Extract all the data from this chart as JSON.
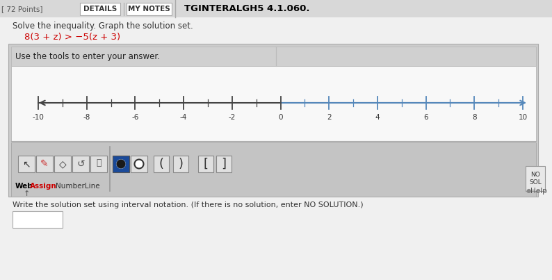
{
  "page_bg": "#e8e8e8",
  "title_text": "TGINTERALGH5 4.1.060.",
  "details_btn": "DETAILS",
  "mynotes_btn": "MY NOTES",
  "solve_text": "Solve the inequality. Graph the solution set.",
  "inequality": "8(3 + z) > −5(z + 3)",
  "inequality_color": "#cc0000",
  "tools_text": "Use the tools to enter your answer.",
  "numberline_min": -10,
  "numberline_max": 10,
  "numberline_ticks": [
    -10,
    -8,
    -6,
    -4,
    -2,
    0,
    2,
    4,
    6,
    8,
    10
  ],
  "nl_color_left": "#444444",
  "nl_color_right": "#5588bb",
  "toolbar_bg": "#c0c0c0",
  "outer_box_bg": "#c8c8c8",
  "header_bg": "#d8d8d8",
  "nl_area_bg": "#f0f0f0",
  "dot_filled_color": "#1a4a9a",
  "webassign_web": "Web",
  "webassign_assign": "Assign",
  "webassign_color": "#cc0000",
  "numberline_label": "NumberLine",
  "no_sol_text": "NO\nSOL",
  "write_text": "Write the solution set using interval notation. (If there is no solution, enter NO SOLUTION.)"
}
